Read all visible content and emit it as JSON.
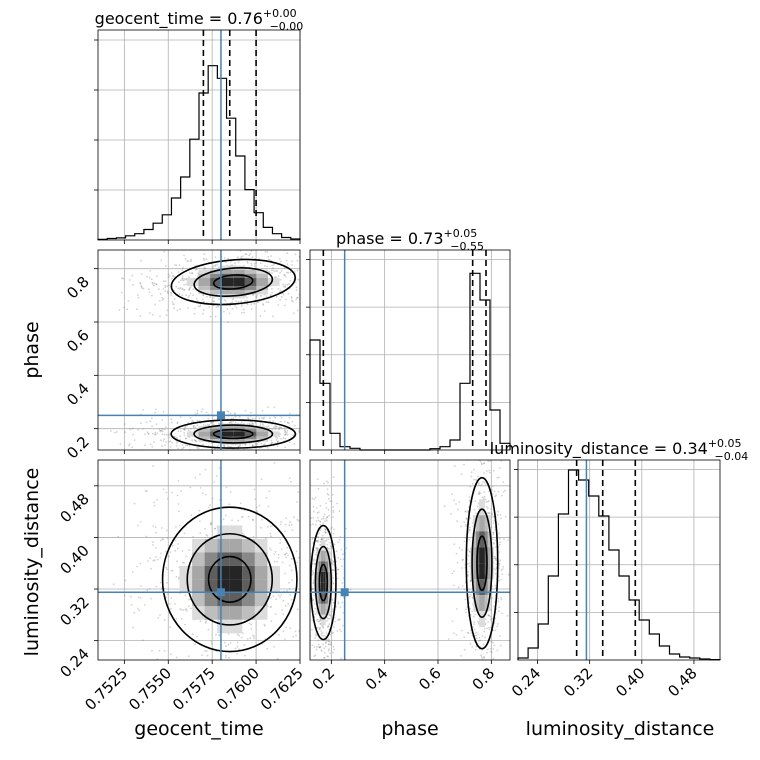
{
  "chart_data": {
    "type": "corner",
    "parameters": [
      "geocent_time",
      "phase",
      "luminosity_distance"
    ],
    "injection": {
      "geocent_time": 0.758,
      "phase": 0.25,
      "luminosity_distance": 0.315
    },
    "diagonal": [
      {
        "param": "geocent_time",
        "title_prefix": "geocent_time = 0.76",
        "title_sup": "+0.00",
        "title_sub": "−0.00",
        "range": [
          0.751,
          0.7625
        ],
        "quantiles": [
          0.757,
          0.7585,
          0.76
        ],
        "hist": [
          0.003,
          0.007,
          0.01,
          0.02,
          0.03,
          0.05,
          0.08,
          0.12,
          0.2,
          0.3,
          0.48,
          0.7,
          0.83,
          0.77,
          0.58,
          0.4,
          0.24,
          0.13,
          0.06,
          0.03,
          0.012,
          0.005
        ],
        "ylim": [
          0,
          1
        ],
        "grid": true
      },
      {
        "param": "phase",
        "title_prefix": "phase = 0.73",
        "title_sup": "+0.05",
        "title_sub": "−0.55",
        "range": [
          0.12,
          0.87
        ],
        "quantiles": [
          0.17,
          0.73,
          0.78
        ],
        "hist": [
          0.33,
          0.2,
          0.05,
          0.01,
          0.005,
          0,
          0,
          0,
          0,
          0,
          0,
          0,
          0.004,
          0.01,
          0.03,
          0.2,
          0.53,
          0.45,
          0.12,
          0.02
        ],
        "ylim": [
          0,
          0.6
        ],
        "grid": true
      },
      {
        "param": "luminosity_distance",
        "title_prefix": "luminosity_distance = 0.34",
        "title_sup": "+0.05",
        "title_sub": "−0.04",
        "range": [
          0.21,
          0.52
        ],
        "quantiles": [
          0.3,
          0.34,
          0.39
        ],
        "hist": [
          0.01,
          0.06,
          0.18,
          0.42,
          0.73,
          0.95,
          0.9,
          0.82,
          0.72,
          0.55,
          0.42,
          0.3,
          0.2,
          0.13,
          0.07,
          0.03,
          0.015,
          0.01,
          0.005,
          0.002
        ],
        "ylim": [
          0,
          1
        ],
        "grid": true
      }
    ],
    "contours": [
      {
        "x": "geocent_time",
        "y": "phase",
        "modes": [
          {
            "cx": 0.7587,
            "cy": 0.75,
            "sx": 0.0012,
            "sy": 0.028,
            "rho": -0.25
          },
          {
            "cx": 0.7587,
            "cy": 0.18,
            "sx": 0.0012,
            "sy": 0.018,
            "rho": 0
          }
        ]
      },
      {
        "x": "geocent_time",
        "y": "luminosity_distance",
        "modes": [
          {
            "cx": 0.7585,
            "cy": 0.335,
            "sx": 0.0013,
            "sy": 0.038,
            "rho": 0
          }
        ]
      },
      {
        "x": "phase",
        "y": "luminosity_distance",
        "modes": [
          {
            "cx": 0.17,
            "cy": 0.33,
            "sx": 0.016,
            "sy": 0.03,
            "rho": 0
          },
          {
            "cx": 0.765,
            "cy": 0.36,
            "sx": 0.02,
            "sy": 0.045,
            "rho": 0
          }
        ]
      }
    ],
    "axes": {
      "geocent_time": {
        "ticks": [
          "0.7525",
          "0.7550",
          "0.7575",
          "0.7600",
          "0.7625"
        ],
        "tick_values": [
          0.7525,
          0.755,
          0.7575,
          0.76,
          0.7625
        ],
        "label": "geocent_time"
      },
      "phase": {
        "ticks": [
          "0.2",
          "0.4",
          "0.6",
          "0.8"
        ],
        "tick_values": [
          0.2,
          0.4,
          0.6,
          0.8
        ],
        "label": "phase"
      },
      "luminosity_distance": {
        "ticks": [
          "0.24",
          "0.32",
          "0.40",
          "0.48"
        ],
        "tick_values": [
          0.24,
          0.32,
          0.4,
          0.48
        ],
        "label": "luminosity_distance"
      }
    },
    "colors": {
      "line": "#000000",
      "truth": "#4682b4",
      "grid": "#b0b0b0",
      "points": "#808080"
    }
  }
}
